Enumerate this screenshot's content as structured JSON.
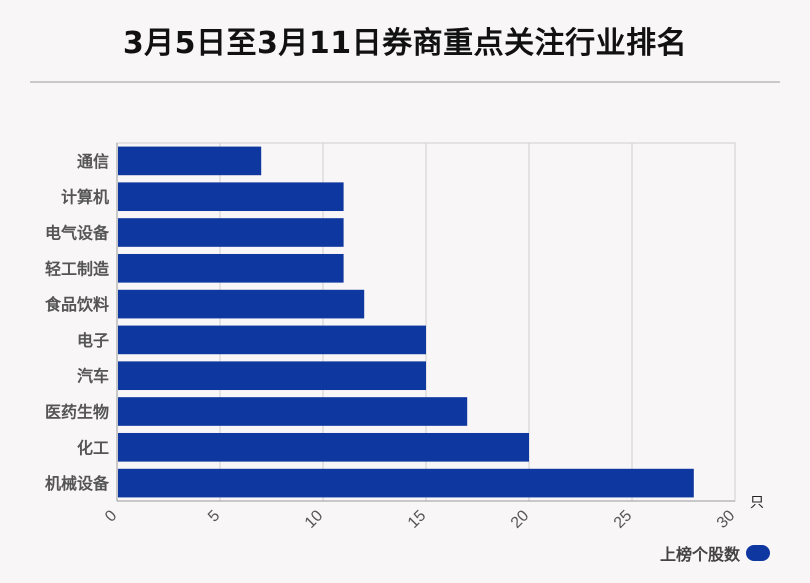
{
  "title": "3月5日至3月11日券商重点关注行业排名",
  "chart_data": {
    "type": "bar",
    "orientation": "horizontal",
    "categories": [
      "通信",
      "计算机",
      "电气设备",
      "轻工制造",
      "食品饮料",
      "电子",
      "汽车",
      "医药生物",
      "化工",
      "机械设备"
    ],
    "series": [
      {
        "name": "上榜个股数",
        "values": [
          7,
          11,
          11,
          11,
          12,
          15,
          15,
          17,
          20,
          28
        ]
      }
    ],
    "xlim": [
      0,
      30
    ],
    "xticks": [
      "0",
      "5",
      "10",
      "15",
      "20",
      "25",
      "30"
    ],
    "xunit": "只",
    "grid": true,
    "legend_position": "bottom-right",
    "bar_color": "#0f37a0"
  }
}
